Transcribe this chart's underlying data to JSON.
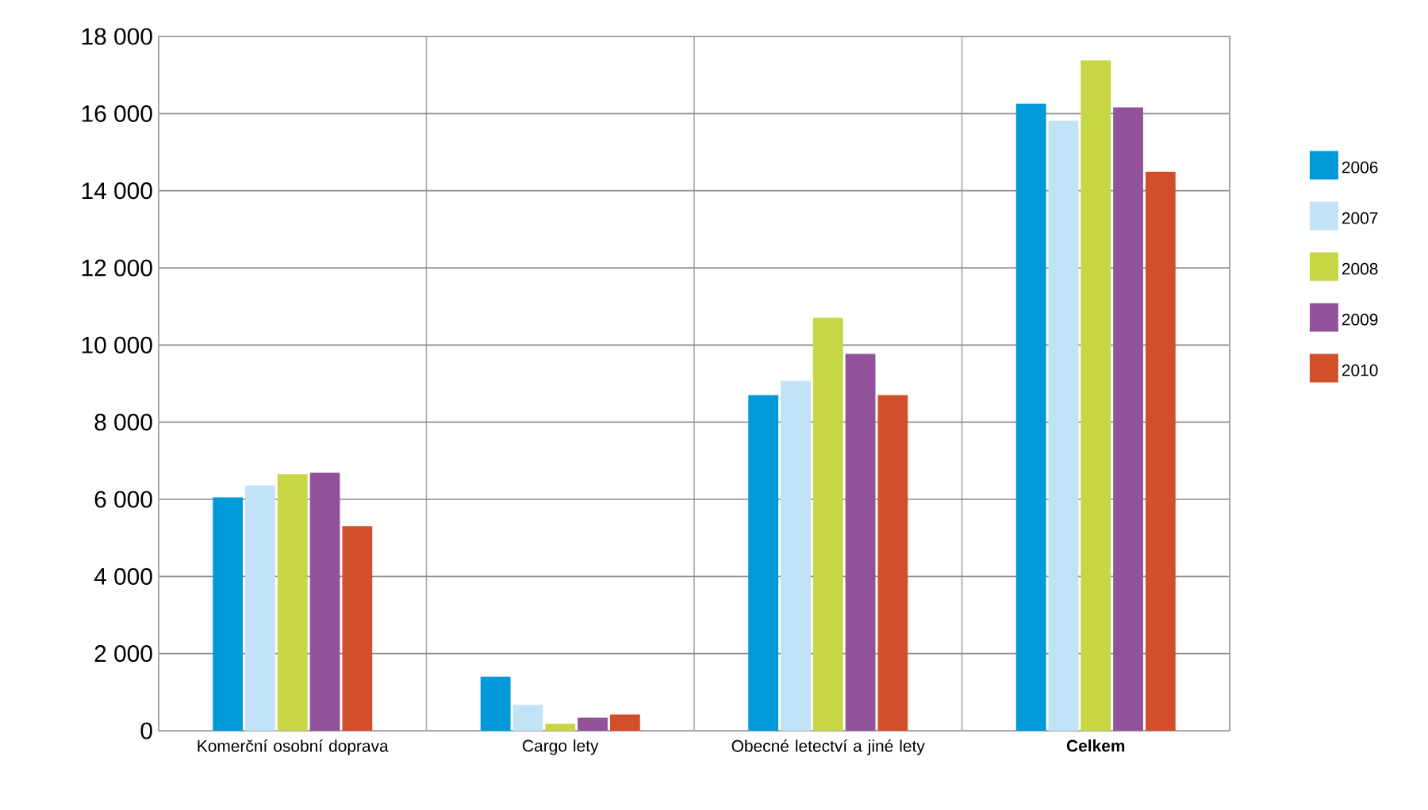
{
  "chart_data": {
    "type": "bar",
    "categories": [
      "Komerční osobní doprava",
      "Cargo lety",
      "Obecné letectví a jiné lety",
      "**Celkem**"
    ],
    "series": [
      {
        "name": "2006",
        "color": "#009ada",
        "values": [
          6050,
          1400,
          8700,
          16260
        ]
      },
      {
        "name": "2007",
        "color": "#c1e2f7",
        "values": [
          6360,
          670,
          9070,
          15810
        ]
      },
      {
        "name": "2008",
        "color": "#c6d644",
        "values": [
          6650,
          180,
          10710,
          17380
        ]
      },
      {
        "name": "2009",
        "color": "#915299",
        "values": [
          6690,
          340,
          9770,
          16160
        ]
      },
      {
        "name": "2010",
        "color": "#d1502b",
        "values": [
          5300,
          420,
          8700,
          14490
        ]
      }
    ],
    "ylim": [
      0,
      18000
    ],
    "yticks": [
      {
        "value": 0,
        "label": "0"
      },
      {
        "value": 2000,
        "label": "2 000"
      },
      {
        "value": 4000,
        "label": "4 000"
      },
      {
        "value": 6000,
        "label": "6 000"
      },
      {
        "value": 8000,
        "label": "8 000"
      },
      {
        "value": 10000,
        "label": "10 000"
      },
      {
        "value": 12000,
        "label": "12 000"
      },
      {
        "value": 14000,
        "label": "14 000"
      },
      {
        "value": 16000,
        "label": "16 000"
      },
      {
        "value": 18000,
        "label": "18 000"
      }
    ],
    "grid": true,
    "legend": "right"
  }
}
